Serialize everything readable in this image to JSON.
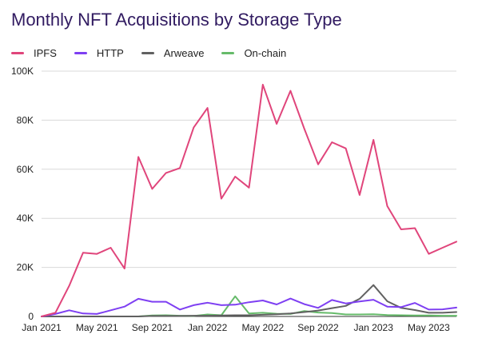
{
  "chart_data": {
    "type": "line",
    "title": "Monthly NFT Acquisitions by Storage Type",
    "xlabel": "",
    "ylabel": "",
    "ylim": [
      0,
      100000
    ],
    "y_ticks": [
      0,
      20000,
      40000,
      60000,
      80000,
      100000
    ],
    "y_tick_labels": [
      "0",
      "20K",
      "40K",
      "60K",
      "80K",
      "100K"
    ],
    "x_tick_labels": [
      "Jan 2021",
      "May 2021",
      "Sep 2021",
      "Jan 2022",
      "May 2022",
      "Sep 2022",
      "Jan 2023",
      "May 2023"
    ],
    "x_tick_indices": [
      0,
      4,
      8,
      12,
      16,
      20,
      24,
      28
    ],
    "legend_position": "top-left",
    "grid": "horizontal",
    "categories": [
      "2021-01",
      "2021-02",
      "2021-03",
      "2021-04",
      "2021-05",
      "2021-06",
      "2021-07",
      "2021-08",
      "2021-09",
      "2021-10",
      "2021-11",
      "2021-12",
      "2022-01",
      "2022-02",
      "2022-03",
      "2022-04",
      "2022-05",
      "2022-06",
      "2022-07",
      "2022-08",
      "2022-09",
      "2022-10",
      "2022-11",
      "2022-12",
      "2023-01",
      "2023-02",
      "2023-03",
      "2023-04",
      "2023-05",
      "2023-06",
      "2023-07"
    ],
    "series": [
      {
        "name": "IPFS",
        "color": "#e0457b",
        "values": [
          0,
          1500,
          12500,
          26000,
          25500,
          28000,
          19500,
          65000,
          52000,
          58500,
          60500,
          77000,
          85000,
          48000,
          57000,
          52500,
          94500,
          78500,
          92000,
          76500,
          62000,
          71000,
          68500,
          49500,
          72000,
          45000,
          35500,
          36000,
          25500,
          28000,
          30500
        ]
      },
      {
        "name": "HTTP",
        "color": "#7e3ff2",
        "values": [
          0,
          1000,
          2500,
          1200,
          1000,
          2500,
          4000,
          7200,
          6000,
          6000,
          2800,
          4600,
          5600,
          4600,
          4800,
          5800,
          6500,
          4900,
          7300,
          5000,
          3500,
          6700,
          5300,
          6100,
          6800,
          4000,
          3800,
          5500,
          2800,
          2900,
          3600
        ]
      },
      {
        "name": "Arweave",
        "color": "#616161",
        "values": [
          0,
          0,
          0,
          0,
          0,
          0,
          0,
          0,
          200,
          200,
          200,
          300,
          300,
          400,
          500,
          500,
          700,
          900,
          1200,
          1800,
          2400,
          3400,
          4300,
          7200,
          12800,
          6200,
          3500,
          2600,
          1500,
          1500,
          1800
        ]
      },
      {
        "name": "On-chain",
        "color": "#66bb6a",
        "values": [
          0,
          0,
          0,
          0,
          0,
          0,
          0,
          0,
          400,
          500,
          300,
          200,
          800,
          500,
          8200,
          1200,
          1500,
          1100,
          1000,
          2200,
          1600,
          1400,
          800,
          800,
          900,
          600,
          500,
          400,
          400,
          300,
          300
        ]
      }
    ]
  }
}
